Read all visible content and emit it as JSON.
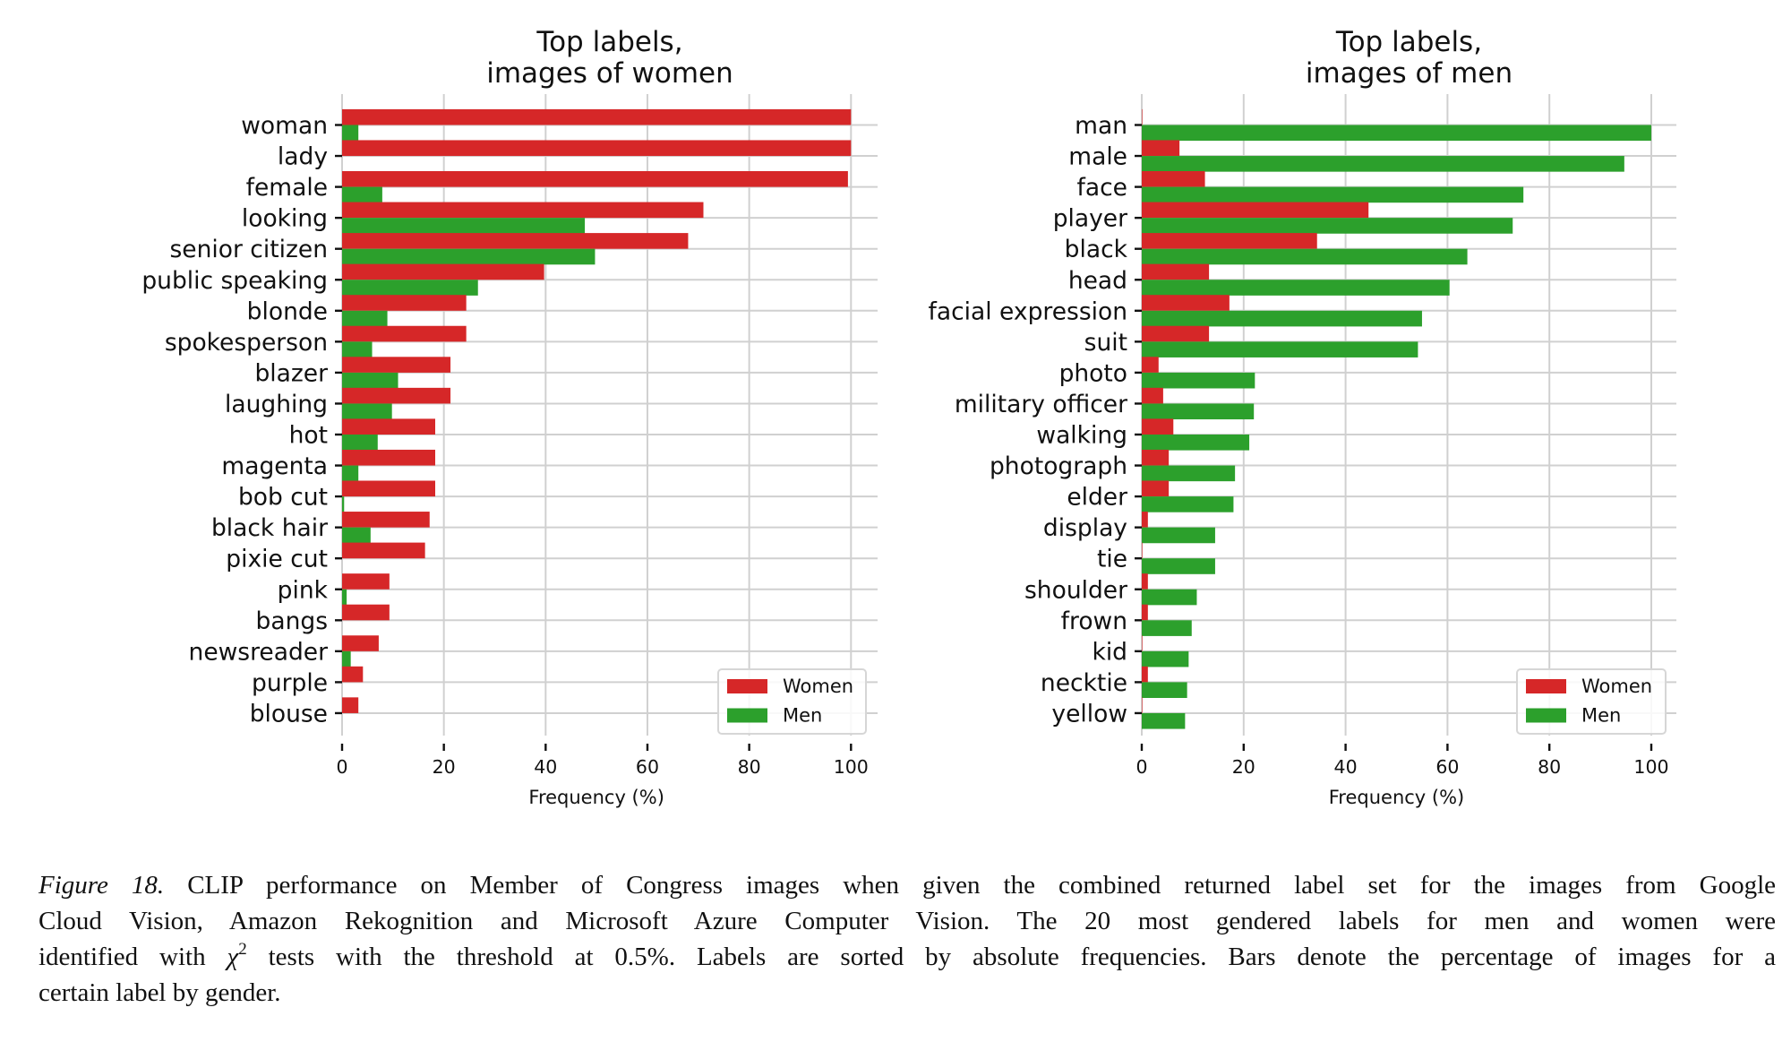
{
  "colors": {
    "women": "#d62728",
    "men": "#2ca02c",
    "grid": "#d0d0d0"
  },
  "chart_data": [
    {
      "type": "bar",
      "orientation": "horizontal",
      "title_lines": [
        "Top labels,",
        "images of women"
      ],
      "xlabel": "Frequency (%)",
      "ylabel": "",
      "xlim": [
        0,
        100
      ],
      "xticks": [
        "0",
        "20",
        "40",
        "60",
        "80",
        "100"
      ],
      "grid": true,
      "legend": {
        "placement": "bottom-right",
        "entries": [
          "Women",
          "Men"
        ]
      },
      "categories": [
        "woman",
        "lady",
        "female",
        "looking",
        "senior citizen",
        "public speaking",
        "blonde",
        "spokesperson",
        "blazer",
        "laughing",
        "hot",
        "magenta",
        "bob cut",
        "black hair",
        "pixie cut",
        "pink",
        "bangs",
        "newsreader",
        "purple",
        "blouse"
      ],
      "series": [
        {
          "name": "Women",
          "values": [
            100,
            100,
            99.4,
            71.0,
            68.0,
            39.7,
            24.4,
            24.4,
            21.3,
            21.3,
            18.3,
            18.3,
            18.3,
            17.2,
            16.3,
            9.3,
            9.3,
            7.2,
            4.1,
            3.2
          ]
        },
        {
          "name": "Men",
          "values": [
            3.2,
            0,
            7.9,
            47.7,
            49.7,
            26.7,
            8.9,
            5.9,
            11.0,
            9.8,
            7.0,
            3.2,
            0.4,
            5.6,
            0,
            0.9,
            0,
            1.7,
            0,
            0
          ]
        }
      ]
    },
    {
      "type": "bar",
      "orientation": "horizontal",
      "title_lines": [
        "Top labels,",
        "images of men"
      ],
      "xlabel": "Frequency (%)",
      "ylabel": "",
      "xlim": [
        0,
        100
      ],
      "xticks": [
        "0",
        "20",
        "40",
        "60",
        "80",
        "100"
      ],
      "grid": true,
      "legend": {
        "placement": "bottom-right",
        "entries": [
          "Women",
          "Men"
        ]
      },
      "categories": [
        "man",
        "male",
        "face",
        "player",
        "black",
        "head",
        "facial expression",
        "suit",
        "photo",
        "military officer",
        "walking",
        "photograph",
        "elder",
        "display",
        "tie",
        "shoulder",
        "frown",
        "kid",
        "necktie",
        "yellow"
      ],
      "series": [
        {
          "name": "Women",
          "values": [
            0.1,
            7.4,
            12.4,
            44.5,
            34.4,
            13.2,
            17.2,
            13.2,
            3.3,
            4.2,
            6.2,
            5.3,
            5.3,
            1.2,
            0.1,
            1.2,
            1.2,
            0.1,
            1.2,
            0.1
          ]
        },
        {
          "name": "Men",
          "values": [
            100,
            94.7,
            74.9,
            72.8,
            63.9,
            60.4,
            55.0,
            54.2,
            22.2,
            22.0,
            21.1,
            18.3,
            18.0,
            14.4,
            14.4,
            10.8,
            9.8,
            9.2,
            8.9,
            8.5
          ]
        }
      ]
    }
  ],
  "caption": {
    "figure_label": "Figure 18.",
    "line1": " CLIP performance on Member of Congress images when given the combined returned label set for the images from Google",
    "line2": "Cloud Vision, Amazon Rekognition and Microsoft Azure Computer Vision.  The 20 most gendered labels for men and women were",
    "line3_pre": "identified with ",
    "chi_symbol": "χ",
    "chi_exponent": "2",
    "line3_post": " tests with the threshold at 0.5%. Labels are sorted by absolute frequencies. Bars denote the percentage of images for a",
    "line4": "certain label by gender."
  }
}
